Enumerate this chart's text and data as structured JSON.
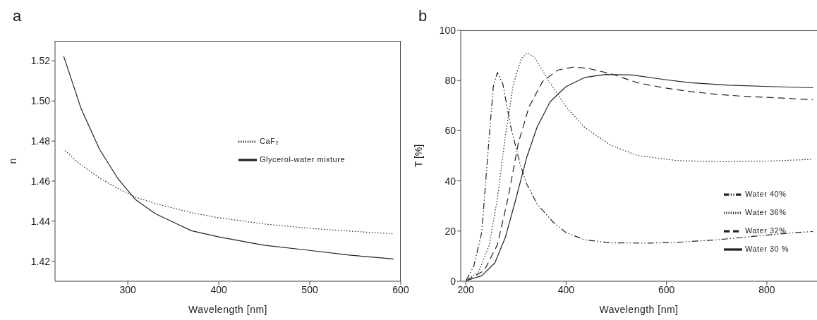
{
  "chart_data": [
    {
      "type": "line",
      "title": "a",
      "xlabel": "Wavelength [nm]",
      "ylabel": "n",
      "xlim": [
        220,
        600
      ],
      "xticks": [
        300,
        400,
        500,
        600
      ],
      "ylim": [
        1.41,
        1.53
      ],
      "yticks": [
        1.42,
        1.44,
        1.46,
        1.48,
        {
          "value": 1.5,
          "label": "1.50"
        },
        1.52
      ],
      "grid": false,
      "legend": "right",
      "marker": "none",
      "series": [
        {
          "name": "CaF₂",
          "color": "#222222",
          "line_style": "dotted",
          "x": [
            231,
            247,
            269,
            290,
            308.5,
            332,
            370,
            399,
            449.5,
            500,
            545,
            592
          ],
          "values": [
            1.4752,
            1.4686,
            1.4615,
            1.4561,
            1.4519,
            1.4486,
            1.4442,
            1.4418,
            1.4386,
            1.4364,
            1.435,
            1.4337
          ]
        },
        {
          "name": "Glycerol-water mixture",
          "color": "#222222",
          "line_style": "solid",
          "x": [
            229.5,
            248.7,
            269,
            289,
            308.5,
            330,
            370,
            399,
            449.5,
            500,
            545,
            592
          ],
          "values": [
            1.5224,
            1.4961,
            1.4758,
            1.4613,
            1.4507,
            1.4438,
            1.4352,
            1.4322,
            1.428,
            1.4254,
            1.423,
            1.4211
          ]
        }
      ]
    },
    {
      "type": "line",
      "title": "b",
      "xlabel": "Wavelength [nm]",
      "ylabel": "T [%]",
      "xlim": [
        190,
        900
      ],
      "xticks": [
        200,
        400,
        600,
        800
      ],
      "ylim": [
        0,
        100
      ],
      "yticks": [
        0,
        20,
        40,
        60,
        80,
        100
      ],
      "grid": false,
      "legend": "bottom right",
      "marker": "none",
      "series": [
        {
          "name": "Water 40%",
          "color": "#222222",
          "line_style": "dashdot",
          "x": [
            201,
            216,
            232,
            245,
            255,
            263,
            274,
            290,
            308,
            321,
            342,
            374,
            400,
            437,
            489,
            568,
            621,
            700,
            779,
            858,
            892
          ],
          "values": [
            0.4,
            6,
            19.6,
            53,
            77.6,
            83.2,
            78.6,
            61.3,
            47,
            39,
            30.8,
            23.6,
            19.4,
            16.5,
            15.3,
            15.2,
            15.5,
            16.5,
            18,
            19.4,
            19.8
          ]
        },
        {
          "name": "Water 36%",
          "color": "#222222",
          "line_style": "dotted",
          "x": [
            201,
            226,
            247,
            263,
            279,
            295,
            311,
            323,
            337,
            363,
            400,
            437,
            489,
            542,
            621,
            700,
            805,
            892
          ],
          "values": [
            0.4,
            3.8,
            14.5,
            32.8,
            58,
            78.6,
            88.8,
            91,
            89.3,
            80.6,
            69.5,
            61.3,
            54.2,
            50.1,
            48.1,
            47.6,
            47.9,
            48.6
          ]
        },
        {
          "name": "Water 32%",
          "color": "#222222",
          "line_style": "dashed",
          "x": [
            201,
            237,
            263,
            284,
            305,
            326,
            353,
            384,
            416,
            447,
            489,
            542,
            595,
            647,
            700,
            753,
            832,
            892
          ],
          "values": [
            0.2,
            4.3,
            14.5,
            32.8,
            55.2,
            69.4,
            79.6,
            84.2,
            85.4,
            84.7,
            82.7,
            79.1,
            77.1,
            75.6,
            74.5,
            73.7,
            73,
            72.3
          ]
        },
        {
          "name": "Water 30 %",
          "color": "#222222",
          "line_style": "solid",
          "x": [
            201,
            232,
            258,
            279,
            300,
            321,
            342,
            368,
            400,
            437,
            479,
            532,
            595,
            647,
            726,
            805,
            892
          ],
          "values": [
            0.2,
            2.2,
            7.3,
            17.5,
            32.8,
            49,
            61.3,
            71.5,
            77.6,
            81.2,
            82.4,
            82.2,
            80.4,
            79.1,
            78.1,
            77.6,
            77.1
          ]
        }
      ]
    }
  ]
}
